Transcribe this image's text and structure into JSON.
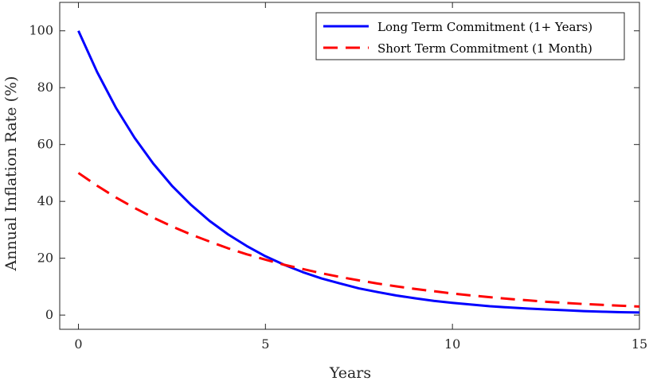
{
  "chart_data": {
    "type": "line",
    "title": "",
    "xlabel": "Years",
    "ylabel": "Annual Inflation Rate (%)",
    "xlim": [
      -0.5,
      15
    ],
    "ylim": [
      -5,
      110
    ],
    "x_ticks": [
      0,
      5,
      10,
      15
    ],
    "y_ticks": [
      0,
      20,
      40,
      60,
      80,
      100
    ],
    "grid": false,
    "legend_position": "top-right",
    "series": [
      {
        "name": "Long Term Commitment (1+ Years)",
        "color": "#0000ff",
        "style": "solid",
        "x": [
          0,
          0.5,
          1,
          1.5,
          2,
          2.5,
          3,
          3.5,
          4,
          4.5,
          5,
          5.5,
          6,
          6.5,
          7,
          7.5,
          8,
          8.5,
          9,
          9.5,
          10,
          10.5,
          11,
          11.5,
          12,
          12.5,
          13,
          13.5,
          14,
          14.5,
          15
        ],
        "y": [
          100,
          85.5,
          73.0,
          62.4,
          53.3,
          45.5,
          38.9,
          33.2,
          28.4,
          24.3,
          20.7,
          17.7,
          15.1,
          12.9,
          11.1,
          9.4,
          8.1,
          6.9,
          5.9,
          5.0,
          4.3,
          3.7,
          3.1,
          2.7,
          2.3,
          2.0,
          1.7,
          1.4,
          1.2,
          1.0,
          0.9
        ]
      },
      {
        "name": "Short Term Commitment (1 Month)",
        "color": "#ff0000",
        "style": "dashed",
        "x": [
          0,
          0.5,
          1,
          1.5,
          2,
          2.5,
          3,
          3.5,
          4,
          4.5,
          5,
          5.5,
          6,
          6.5,
          7,
          7.5,
          8,
          8.5,
          9,
          9.5,
          10,
          10.5,
          11,
          11.5,
          12,
          12.5,
          13,
          13.5,
          14,
          14.5,
          15
        ],
        "y": [
          50,
          45.5,
          41.4,
          37.7,
          34.3,
          31.2,
          28.4,
          25.9,
          23.5,
          21.4,
          19.5,
          17.7,
          16.2,
          14.7,
          13.4,
          12.2,
          11.1,
          10.1,
          9.2,
          8.4,
          7.6,
          6.9,
          6.3,
          5.7,
          5.2,
          4.7,
          4.3,
          3.9,
          3.6,
          3.3,
          3.0
        ]
      }
    ]
  }
}
